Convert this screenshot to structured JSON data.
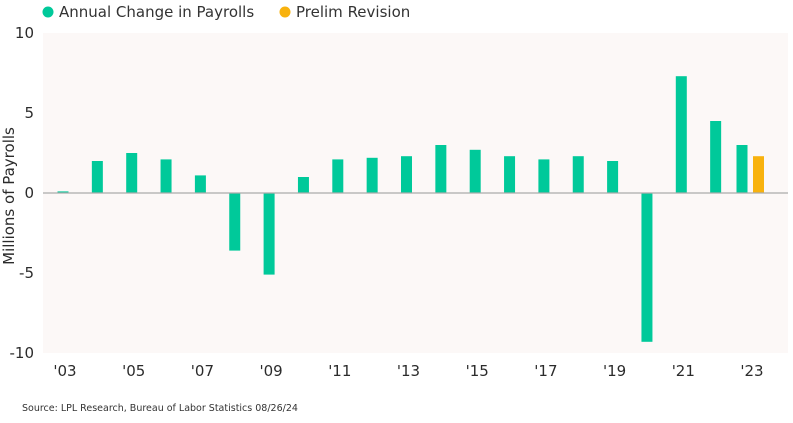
{
  "chart_data": {
    "type": "bar",
    "title": "",
    "xlabel": "",
    "ylabel": "Millions of Payrolls",
    "ylim": [
      -10,
      10
    ],
    "yticks": [
      10,
      5,
      0,
      -5,
      -10
    ],
    "grid": false,
    "legend_position": "top-left",
    "categories": [
      "'03",
      "'04",
      "'05",
      "'06",
      "'07",
      "'08",
      "'09",
      "'10",
      "'11",
      "'12",
      "'13",
      "'14",
      "'15",
      "'16",
      "'17",
      "'18",
      "'19",
      "'20",
      "'21",
      "'22",
      "'23"
    ],
    "xtick_labels": [
      "'03",
      "'05",
      "'07",
      "'09",
      "'11",
      "'13",
      "'15",
      "'17",
      "'19",
      "'21",
      "'23"
    ],
    "series": [
      {
        "name": "Annual Change in Payrolls",
        "color": "#00C99A",
        "values": [
          0.1,
          2.0,
          2.5,
          2.1,
          1.1,
          -3.6,
          -5.1,
          1.0,
          2.1,
          2.2,
          2.3,
          3.0,
          2.7,
          2.3,
          2.1,
          2.3,
          2.0,
          -9.3,
          7.3,
          4.5,
          3.0
        ]
      },
      {
        "name": "Prelim Revision",
        "color": "#F8B20E",
        "values": [
          null,
          null,
          null,
          null,
          null,
          null,
          null,
          null,
          null,
          null,
          null,
          null,
          null,
          null,
          null,
          null,
          null,
          null,
          null,
          null,
          2.3
        ]
      }
    ]
  },
  "footer": {
    "source": "Source: LPL Research, Bureau of Labor Statistics 08/26/24"
  },
  "colors": {
    "plot_background": "#FCF8F7",
    "zero_line": "#AAAAAA"
  }
}
